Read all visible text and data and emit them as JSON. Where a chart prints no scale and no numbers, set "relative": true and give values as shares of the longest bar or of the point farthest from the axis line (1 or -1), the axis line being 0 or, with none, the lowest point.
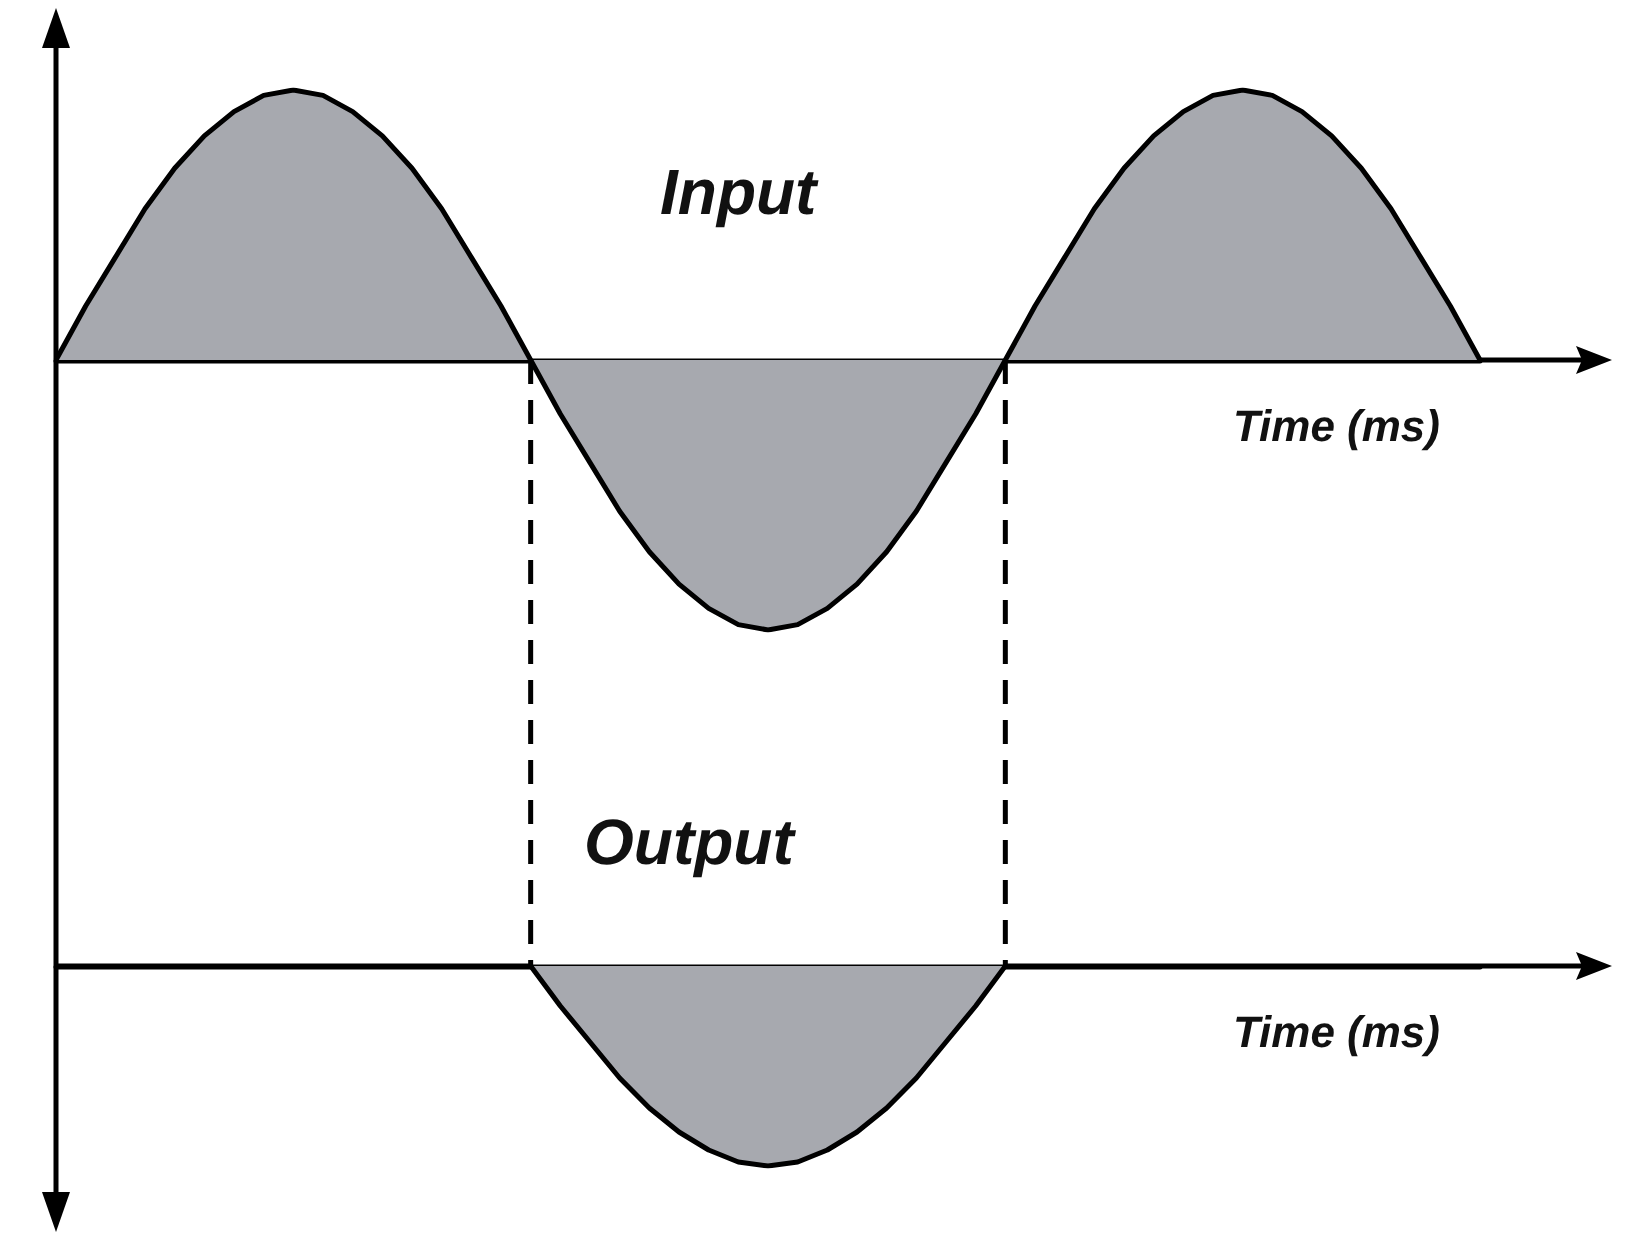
{
  "chart_data": [
    {
      "type": "area",
      "relative": true,
      "marker": "none",
      "xlabel": "Time (ms)",
      "annotations": [
        "Input"
      ],
      "categories": [
        null,
        null,
        null,
        null,
        null,
        null,
        null,
        null,
        null,
        null,
        null,
        null,
        null,
        null,
        null,
        null,
        null,
        null,
        null,
        null,
        null,
        null,
        null,
        null,
        null,
        null,
        null,
        null,
        null,
        null,
        null,
        null,
        null,
        null,
        null,
        null,
        null,
        null,
        null,
        null,
        null,
        null,
        null,
        null,
        null,
        null,
        null,
        null,
        null
      ],
      "series": [
        {
          "color": "#a7a9af",
          "values": [
            0,
            0.2,
            0.38,
            0.56,
            0.71,
            0.83,
            0.92,
            0.98,
            1,
            0.98,
            0.92,
            0.83,
            0.71,
            0.56,
            0.38,
            0.2,
            0,
            -0.2,
            -0.38,
            -0.56,
            -0.71,
            -0.83,
            -0.92,
            -0.98,
            -1,
            -0.98,
            -0.92,
            -0.83,
            -0.71,
            -0.56,
            -0.38,
            -0.2,
            0,
            0.2,
            0.38,
            0.56,
            0.71,
            0.83,
            0.92,
            0.98,
            1,
            0.98,
            0.92,
            0.83,
            0.71,
            0.56,
            0.38,
            0.2,
            0
          ]
        }
      ]
    },
    {
      "type": "area",
      "relative": true,
      "marker": "none",
      "xlabel": "Time (ms)",
      "annotations": [
        "Output"
      ],
      "categories": [
        null,
        null,
        null,
        null,
        null,
        null,
        null,
        null,
        null,
        null,
        null,
        null,
        null,
        null,
        null,
        null,
        null,
        null,
        null,
        null,
        null,
        null,
        null,
        null,
        null,
        null,
        null,
        null,
        null,
        null,
        null,
        null,
        null,
        null,
        null,
        null,
        null,
        null,
        null,
        null,
        null,
        null,
        null,
        null,
        null,
        null,
        null,
        null,
        null
      ],
      "series": [
        {
          "color": "#a7a9af",
          "values": [
            0,
            0,
            0,
            0,
            0,
            0,
            0,
            0,
            0,
            0,
            0,
            0,
            0,
            0,
            0,
            0,
            0,
            -0.2,
            -0.38,
            -0.56,
            -0.71,
            -0.83,
            -0.92,
            -0.98,
            -1,
            -0.98,
            -0.92,
            -0.83,
            -0.71,
            -0.56,
            -0.38,
            -0.2,
            0,
            0,
            0,
            0,
            0,
            0,
            0,
            0,
            0,
            0,
            0,
            0,
            0,
            0,
            0,
            0,
            0
          ]
        }
      ]
    }
  ]
}
